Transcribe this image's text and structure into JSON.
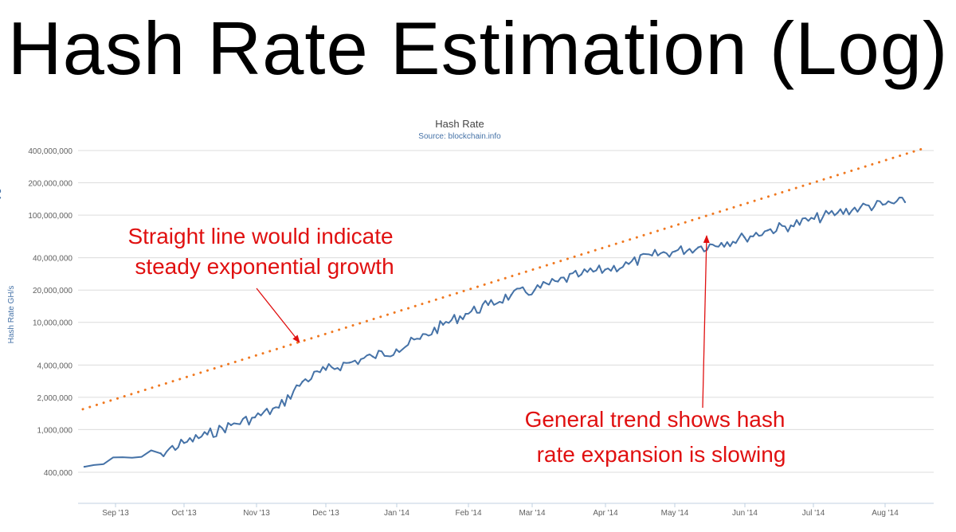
{
  "slide_title": "Hash Rate Estimation (Log)",
  "chart_data": {
    "type": "line",
    "title": "Hash Rate",
    "subtitle": "Source: blockchain.info",
    "ylabel": "Hash Rate GH/s",
    "xlabel": "",
    "y_scale": "log",
    "ylim": [
      300000,
      500000000
    ],
    "y_ticks": [
      {
        "value": 400000,
        "label": "400,000"
      },
      {
        "value": 1000000,
        "label": "1,000,000"
      },
      {
        "value": 2000000,
        "label": "2,000,000"
      },
      {
        "value": 4000000,
        "label": "4,000,000"
      },
      {
        "value": 10000000,
        "label": "10,000,000"
      },
      {
        "value": 20000000,
        "label": "20,000,000"
      },
      {
        "value": 40000000,
        "label": "40,000,000"
      },
      {
        "value": 100000000,
        "label": "100,000,000"
      },
      {
        "value": 200000000,
        "label": "200,000,000"
      },
      {
        "value": 400000000,
        "label": "400,000,000"
      }
    ],
    "x_ticks": [
      "Sep '13",
      "Oct '13",
      "Nov '13",
      "Dec '13",
      "Jan '14",
      "Feb '14",
      "Mar '14",
      "Apr '14",
      "May '14",
      "Jun '14",
      "Jul '14",
      "Aug '14"
    ],
    "grid": true,
    "series": [
      {
        "kind": "observed",
        "color": "#4572A7",
        "x": [
          "Aug '13",
          "Sep '13",
          "Sep '13",
          "Sep '13",
          "Oct '13",
          "Oct '13",
          "Oct '13",
          "Nov '13",
          "Nov '13",
          "Nov '13",
          "Dec '13",
          "Dec '13",
          "Dec '13",
          "Jan '14",
          "Jan '14",
          "Jan '14",
          "Feb '14",
          "Feb '14",
          "Feb '14",
          "Mar '14",
          "Mar '14",
          "Mar '14",
          "Apr '14",
          "Apr '14",
          "Apr '14",
          "May '14",
          "May '14",
          "May '14",
          "Jun '14",
          "Jun '14",
          "Jun '14",
          "Jul '14",
          "Jul '14",
          "Jul '14",
          "Aug '14",
          "Aug '14",
          "Aug '14"
        ],
        "values": [
          450000,
          600000,
          750000,
          900000,
          1100000,
          1300000,
          1600000,
          2800000,
          3600000,
          4200000,
          4800000,
          5600000,
          7000000,
          9500000,
          12000000,
          14500000,
          18000000,
          20000000,
          24000000,
          28000000,
          31000000,
          35000000,
          42000000,
          46000000,
          50000000,
          55000000,
          62000000,
          72000000,
          80000000,
          92000000,
          105000000,
          118000000,
          125000000,
          132000000,
          145000000,
          170000000,
          165000000
        ]
      },
      {
        "kind": "trend",
        "color": "#F07820",
        "style": "dotted",
        "x": [
          "Aug '13",
          "Aug '14"
        ],
        "values": [
          1550000,
          420000000
        ]
      }
    ],
    "annotations": [
      {
        "lines": [
          "Straight line would indicate",
          "steady exponential growth"
        ],
        "color": "#e01010"
      },
      {
        "lines": [
          "General trend shows hash",
          "rate expansion is slowing"
        ],
        "color": "#e01010"
      }
    ]
  }
}
